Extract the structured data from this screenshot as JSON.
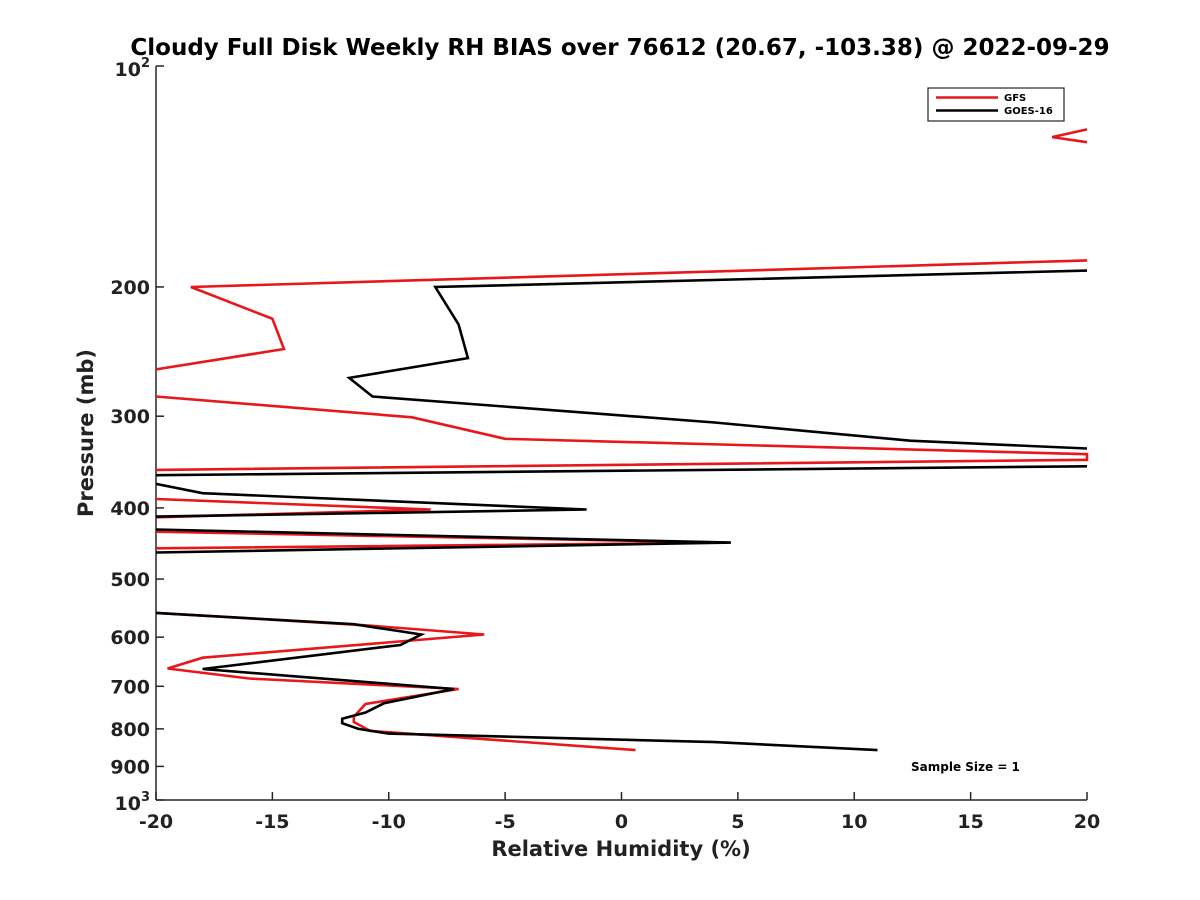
{
  "chart_data": {
    "type": "line",
    "title": "Cloudy Full Disk Weekly RH BIAS over 76612 (20.67, -103.38) @ 2022-09-29",
    "xlabel": "Relative Humidity (%)",
    "ylabel": "Pressure (mb)",
    "xlim": [
      -20,
      20
    ],
    "ylim": [
      100,
      1000
    ],
    "y_scale": "log",
    "y_reversed": true,
    "grid": false,
    "legend_position": "top-right",
    "x_ticks": [
      "-20",
      "-15",
      "-10",
      "-5",
      "0",
      "5",
      "10",
      "15",
      "20"
    ],
    "y_ticks": [
      {
        "value": 100,
        "base": "10",
        "exp": "2"
      },
      {
        "value": 200,
        "label": "200"
      },
      {
        "value": 300,
        "label": "300"
      },
      {
        "value": 400,
        "label": "400"
      },
      {
        "value": 500,
        "label": "500"
      },
      {
        "value": 600,
        "label": "600"
      },
      {
        "value": 700,
        "label": "700"
      },
      {
        "value": 800,
        "label": "800"
      },
      {
        "value": 900,
        "label": "900"
      },
      {
        "value": 1000,
        "base": "10",
        "exp": "3"
      }
    ],
    "series": [
      {
        "name": "GFS",
        "color": "#e8171b",
        "points": [
          [
            20,
            122
          ],
          [
            18.5,
            125
          ],
          [
            20,
            127
          ],
          null,
          [
            20,
            184
          ],
          [
            -18.5,
            200
          ],
          [
            -15,
            221
          ],
          [
            -14.5,
            243
          ],
          [
            -20,
            259
          ],
          null,
          [
            -20,
            282
          ],
          [
            -9,
            301
          ],
          [
            -5,
            322
          ],
          [
            20,
            338
          ],
          [
            20,
            344
          ],
          [
            -20,
            355
          ],
          null,
          [
            -20,
            389
          ],
          [
            -8.2,
            402
          ],
          [
            -20,
            412
          ],
          null,
          [
            -20,
            431
          ],
          [
            4.5,
            446
          ],
          [
            -20,
            454
          ],
          null,
          [
            -20,
            556
          ],
          [
            -11,
            578
          ],
          [
            -5.9,
            595
          ],
          [
            -18,
            640
          ],
          [
            -19.5,
            662
          ],
          [
            -16,
            683
          ],
          [
            -7,
            706
          ],
          [
            -11,
            740
          ],
          [
            -11.5,
            770
          ],
          [
            -11.5,
            783
          ],
          [
            -10.8,
            805
          ],
          [
            0.6,
            855
          ]
        ]
      },
      {
        "name": "GOES-16",
        "color": "#000000",
        "points": [
          [
            20,
            190
          ],
          [
            -8,
            200
          ],
          [
            -7,
            225
          ],
          [
            -6.6,
            250
          ],
          [
            -11.7,
            266
          ],
          [
            -10.7,
            282
          ],
          [
            4,
            306
          ],
          [
            12.4,
            324
          ],
          [
            20,
            332
          ],
          null,
          [
            20,
            351
          ],
          [
            -20,
            361
          ],
          null,
          [
            -20,
            371
          ],
          [
            -18,
            382
          ],
          [
            -1.5,
            402
          ],
          [
            -20,
            411
          ],
          null,
          [
            -20,
            428
          ],
          [
            4.7,
            446
          ],
          [
            -20,
            460
          ],
          null,
          [
            -20,
            556
          ],
          [
            -11.5,
            576
          ],
          [
            -8.6,
            595
          ],
          [
            -9.5,
            615
          ],
          [
            -18,
            663
          ],
          [
            -7.2,
            706
          ],
          [
            -10.2,
            738
          ],
          [
            -11,
            760
          ],
          [
            -12,
            775
          ],
          [
            -12,
            786
          ],
          [
            -11.3,
            800
          ],
          [
            -10,
            812
          ],
          [
            4,
            834
          ],
          [
            11,
            855
          ]
        ]
      }
    ],
    "annotations": [
      "Sample Size = 1"
    ]
  }
}
